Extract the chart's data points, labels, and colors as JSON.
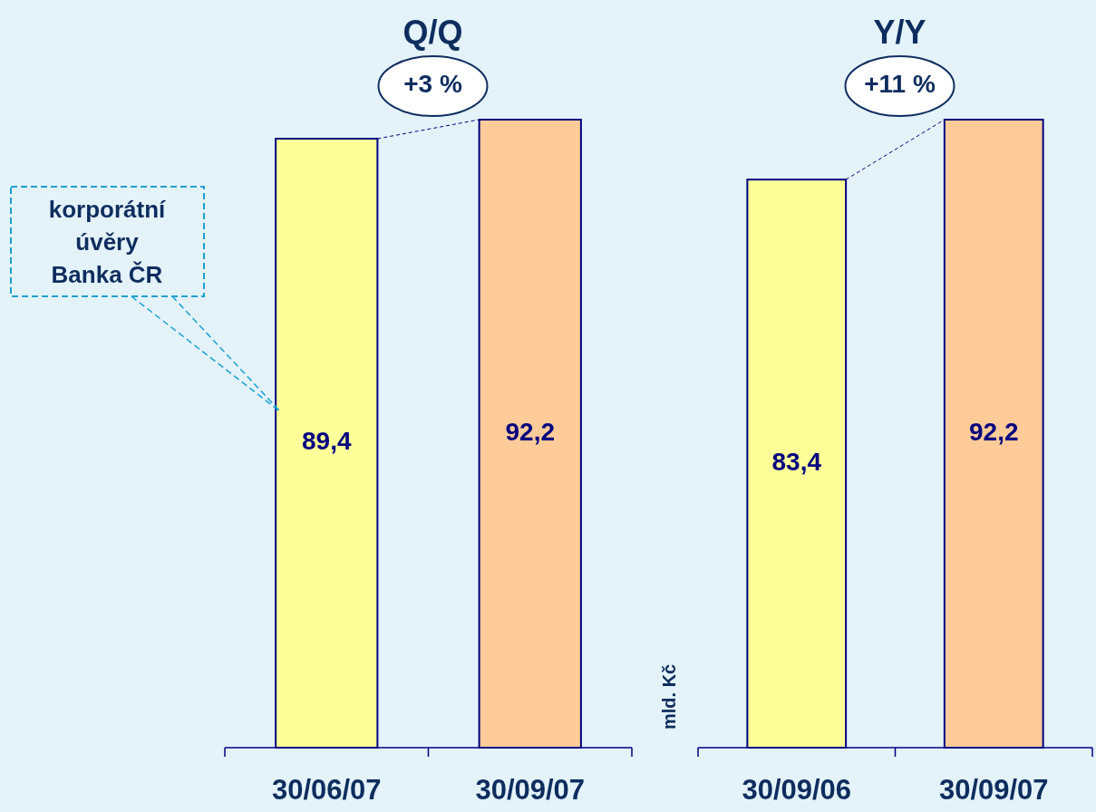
{
  "chart_data": [
    {
      "type": "bar",
      "title": "Q/Q",
      "categories": [
        "30/06/07",
        "30/09/07"
      ],
      "values": [
        89.4,
        92.2
      ],
      "value_labels": [
        "89,4",
        "92,2"
      ],
      "colors": [
        "#ffff99",
        "#ffcc99"
      ],
      "annotations": [
        "+3 %",
        "korporátní\núvěry\nBanka ČR"
      ]
    },
    {
      "type": "bar",
      "title": "Y/Y",
      "ylabel": "mld. Kč",
      "categories": [
        "30/09/06",
        "30/09/07"
      ],
      "values": [
        83.4,
        92.2
      ],
      "value_labels": [
        "83,4",
        "92,2"
      ],
      "colors": [
        "#ffff99",
        "#ffcc99"
      ],
      "annotations": [
        "+11 %"
      ]
    }
  ]
}
